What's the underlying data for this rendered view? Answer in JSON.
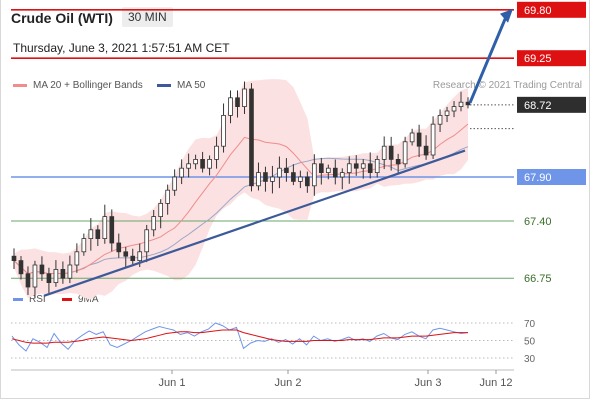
{
  "header": {
    "instrument": "Crude Oil (WTI)",
    "timeframe": "30 MIN",
    "datetime": "Thursday, June 3, 2021 1:57:51 AM CET"
  },
  "copyright": "Research © 2021 Trading Central",
  "colors": {
    "ma20": "#f08c8c",
    "ma50": "#3c5a9a",
    "resistance": "#dd1111",
    "pivot": "#6f95e8",
    "support": "#6aa66a",
    "price_tag": "#2e2e2e",
    "rsi": "#6f95e8",
    "rsi_ma": "#dd1111",
    "arrow": "#2f5fa8",
    "bands": "#fbe1e1"
  },
  "chart_data": [
    {
      "type": "candlestick",
      "title": "Crude Oil (WTI)",
      "timeframe": "30 MIN",
      "legend": [
        {
          "name": "MA 20 + Bollinger Bands",
          "color": "#f08c8c"
        },
        {
          "name": "MA 50",
          "color": "#3c5a9a"
        }
      ],
      "legend_position": "top-left",
      "x_ticks": [
        "Jun 1",
        "Jun 2",
        "Jun 3",
        "Jun 12"
      ],
      "last_price": "68.72",
      "levels": [
        {
          "value": "69.80",
          "kind": "resistance",
          "label_style": "filled"
        },
        {
          "value": "69.25",
          "kind": "resistance",
          "label_style": "filled"
        },
        {
          "value": "67.90",
          "kind": "pivot",
          "label_style": "filled"
        },
        {
          "value": "67.40",
          "kind": "support",
          "label_style": "text"
        },
        {
          "value": "66.75",
          "kind": "support",
          "label_style": "text"
        }
      ],
      "trendline": {
        "from": 66.55,
        "to": 68.2
      },
      "forecast_arrow": {
        "from": 68.72,
        "to": 69.8
      },
      "close_path": [
        66.95,
        66.8,
        66.65,
        66.9,
        66.8,
        66.7,
        66.85,
        66.75,
        66.9,
        67.05,
        67.2,
        67.3,
        67.2,
        67.45,
        67.15,
        67.05,
        67.0,
        66.95,
        67.05,
        67.3,
        67.45,
        67.6,
        67.75,
        67.9,
        68.0,
        68.05,
        68.1,
        68.0,
        68.1,
        68.25,
        68.6,
        68.8,
        68.7,
        68.9,
        67.8,
        67.95,
        67.85,
        67.9,
        68.0,
        67.95,
        67.85,
        67.9,
        67.8,
        68.05,
        67.95,
        68.0,
        67.9,
        67.95,
        68.05,
        68.0,
        68.05,
        67.95,
        68.1,
        68.25,
        68.1,
        68.05,
        68.3,
        68.4,
        68.25,
        68.15,
        68.5,
        68.6,
        68.65,
        68.7,
        68.75,
        68.72
      ]
    },
    {
      "type": "line",
      "title": "",
      "legend": [
        {
          "name": "RSI",
          "color": "#6f95e8"
        },
        {
          "name": "9MA",
          "color": "#dd1111"
        }
      ],
      "y_ticks": [
        "70",
        "50",
        "30"
      ],
      "ylim": [
        22,
        78
      ],
      "series": [
        {
          "name": "RSI",
          "values": [
            55,
            45,
            38,
            52,
            48,
            42,
            58,
            47,
            40,
            50,
            56,
            61,
            57,
            60,
            45,
            42,
            46,
            50,
            55,
            60,
            63,
            66,
            64,
            62,
            57,
            59,
            55,
            60,
            63,
            70,
            67,
            62,
            65,
            41,
            47,
            50,
            49,
            52,
            48,
            51,
            46,
            52,
            45,
            55,
            50,
            52,
            49,
            51,
            54,
            50,
            52,
            49,
            55,
            58,
            53,
            51,
            57,
            60,
            55,
            52,
            62,
            64,
            62,
            60,
            58,
            59
          ]
        },
        {
          "name": "9MA",
          "values": [
            52,
            50,
            48,
            47,
            47,
            47,
            48,
            48,
            48,
            49,
            50,
            52,
            53,
            54,
            53,
            52,
            51,
            50,
            51,
            52,
            54,
            56,
            58,
            59,
            60,
            60,
            59,
            59,
            60,
            61,
            62,
            62,
            62,
            59,
            57,
            55,
            53,
            51,
            50,
            49,
            49,
            49,
            49,
            50,
            50,
            50,
            50,
            50,
            51,
            51,
            51,
            51,
            52,
            53,
            53,
            53,
            54,
            55,
            55,
            55,
            56,
            57,
            58,
            59,
            59,
            59
          ]
        }
      ]
    }
  ]
}
